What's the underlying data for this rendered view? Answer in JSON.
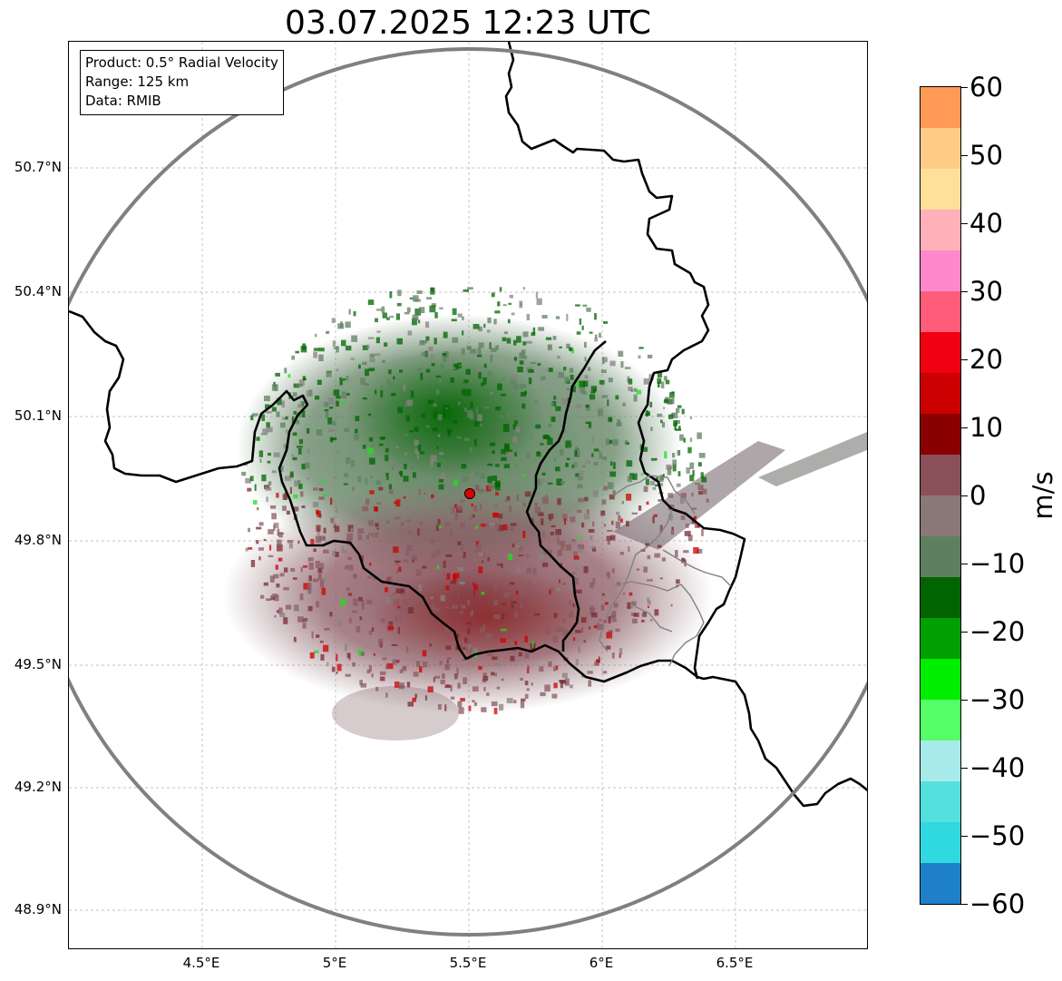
{
  "title": "03.07.2025 12:23 UTC",
  "info_box": {
    "product": "Product: 0.5° Radial Velocity",
    "range": "Range: 125 km",
    "data": "Data: RMIB"
  },
  "axes": {
    "lon_ticks": [
      "4.5°E",
      "5°E",
      "5.5°E",
      "6°E",
      "6.5°E"
    ],
    "lat_ticks": [
      "50.7°N",
      "50.4°N",
      "50.1°N",
      "49.8°N",
      "49.5°N",
      "49.2°N",
      "48.9°N"
    ],
    "grid": true
  },
  "radar_site": {
    "name": "",
    "lon": 5.5,
    "lat": 49.91
  },
  "colorbar": {
    "unit": "m/s",
    "min": -60,
    "max": 60,
    "ticks": [
      "60",
      "50",
      "40",
      "30",
      "20",
      "10",
      "0",
      "−10",
      "−20",
      "−30",
      "−40",
      "−50",
      "−60"
    ],
    "colors": [
      "#ff9955",
      "#ffcc88",
      "#ffe09a",
      "#ffb0b8",
      "#ff88cc",
      "#ff5c7a",
      "#f00010",
      "#cc0000",
      "#8a0000",
      "#8a5058",
      "#8a7878",
      "#5f8060",
      "#006400",
      "#00a000",
      "#00ee00",
      "#55ff66",
      "#a8eaea",
      "#55e0e0",
      "#30d8e0",
      "#1e80c8"
    ]
  },
  "icons": {
    "radar_site": "red-circle-marker",
    "range_ring": "gray-circle"
  }
}
